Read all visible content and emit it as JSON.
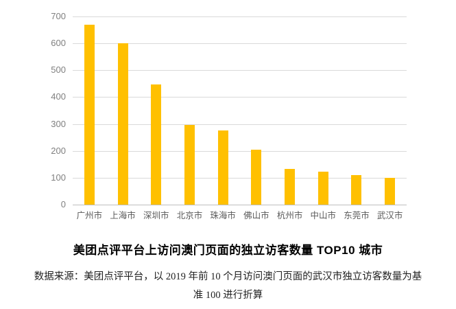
{
  "figure": {
    "title": "美团点评平台上访问澳门页面的独立访客数量 TOP10 城市",
    "source_note": "数据来源：美团点评平台，以 2019 年前 10 个月访问澳门页面的武汉市独立访客数量为基准 100 进行折算"
  },
  "colors": {
    "bar": "#FFC000",
    "gridline": "#D9D9D9",
    "axis_line": "#BFBFBF",
    "y_tick_label": "#7F7F7F",
    "category_label": "#595959",
    "title_text": "#000000",
    "note_text": "#212121"
  },
  "chart_data": {
    "type": "bar",
    "categories": [
      "广州市",
      "上海市",
      "深圳市",
      "北京市",
      "珠海市",
      "佛山市",
      "杭州市",
      "中山市",
      "东莞市",
      "武汉市"
    ],
    "values": [
      670,
      600,
      448,
      297,
      277,
      205,
      134,
      122,
      110,
      100
    ],
    "title": "美团点评平台上访问澳门页面的独立访客数量 TOP10 城市",
    "xlabel": "",
    "ylabel": "",
    "ylim": [
      0,
      700
    ],
    "yticks": [
      700,
      600,
      500,
      400,
      300,
      200,
      100,
      0
    ],
    "grid": true,
    "legend": false,
    "bar_color": "#FFC000"
  }
}
